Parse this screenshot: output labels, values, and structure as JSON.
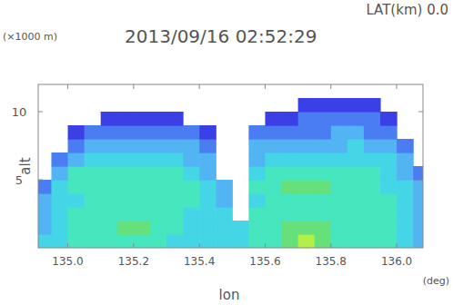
{
  "chart_data": {
    "type": "heatmap",
    "title": "2013/09/16 02:52:29",
    "subtitle": "LAT(km) 0.0",
    "x_label": "lon",
    "x_unit": "(deg)",
    "y_label": "alt",
    "y_unit": "(×1000 m)",
    "xlim": [
      134.91,
      136.08
    ],
    "ylim": [
      0,
      12
    ],
    "xticks": [
      {
        "value": 135,
        "label": "135.0"
      },
      {
        "value": 135.2,
        "label": "135.2"
      },
      {
        "value": 135.4,
        "label": "135.4"
      },
      {
        "value": 135.6,
        "label": "135.6"
      },
      {
        "value": 135.8,
        "label": "135.8"
      },
      {
        "value": 136,
        "label": "136.0"
      }
    ],
    "yticks": [
      5,
      10
    ],
    "x_edges": [
      134.9,
      134.95,
      135.0,
      135.05,
      135.1,
      135.15,
      135.2,
      135.25,
      135.3,
      135.35,
      135.4,
      135.45,
      135.5,
      135.55,
      135.6,
      135.65,
      135.7,
      135.75,
      135.8,
      135.85,
      135.9,
      135.95,
      136.0,
      136.05,
      136.1
    ],
    "y_edges": [
      0,
      1,
      2,
      3,
      4,
      5,
      6,
      7,
      8,
      9,
      10,
      11,
      12
    ],
    "z": [
      [
        20,
        15,
        15,
        15,
        10,
        null,
        null,
        null,
        null,
        null,
        null,
        null
      ],
      [
        20,
        20,
        20,
        20,
        20,
        15,
        10,
        null,
        null,
        null,
        null,
        null
      ],
      [
        25,
        25,
        25,
        20,
        25,
        25,
        15,
        10,
        5,
        null,
        null,
        null
      ],
      [
        25,
        25,
        25,
        25,
        25,
        25,
        20,
        15,
        10,
        null,
        null,
        null
      ],
      [
        25,
        25,
        25,
        25,
        25,
        25,
        20,
        15,
        10,
        5,
        null,
        null
      ],
      [
        25,
        30,
        25,
        25,
        25,
        25,
        20,
        15,
        10,
        5,
        null,
        null
      ],
      [
        25,
        30,
        25,
        25,
        25,
        25,
        20,
        15,
        10,
        5,
        null,
        null
      ],
      [
        25,
        25,
        25,
        25,
        25,
        25,
        20,
        15,
        10,
        5,
        null,
        null
      ],
      [
        20,
        25,
        25,
        25,
        25,
        25,
        20,
        15,
        10,
        5,
        null,
        null
      ],
      [
        20,
        20,
        20,
        25,
        25,
        20,
        15,
        15,
        10,
        null,
        null,
        null
      ],
      [
        20,
        20,
        20,
        20,
        20,
        15,
        15,
        10,
        5,
        null,
        null,
        null
      ],
      [
        20,
        20,
        20,
        15,
        15,
        null,
        null,
        null,
        null,
        null,
        null,
        null
      ],
      [
        20,
        20,
        null,
        null,
        null,
        null,
        null,
        null,
        null,
        null,
        null,
        null
      ],
      [
        25,
        25,
        25,
        20,
        25,
        20,
        15,
        15,
        10,
        null,
        null,
        null
      ],
      [
        25,
        25,
        25,
        25,
        25,
        25,
        20,
        15,
        10,
        5,
        null,
        null
      ],
      [
        30,
        30,
        25,
        25,
        30,
        25,
        20,
        15,
        10,
        5,
        null,
        null
      ],
      [
        35,
        30,
        25,
        25,
        30,
        25,
        20,
        15,
        10,
        10,
        5,
        null
      ],
      [
        30,
        30,
        25,
        25,
        30,
        25,
        20,
        15,
        10,
        10,
        5,
        null
      ],
      [
        25,
        25,
        25,
        25,
        25,
        25,
        20,
        15,
        15,
        10,
        5,
        null
      ],
      [
        25,
        25,
        25,
        25,
        25,
        25,
        20,
        20,
        15,
        10,
        5,
        null
      ],
      [
        25,
        25,
        25,
        25,
        25,
        25,
        20,
        15,
        10,
        10,
        5,
        null
      ],
      [
        25,
        25,
        25,
        25,
        20,
        20,
        20,
        15,
        10,
        5,
        null,
        null
      ],
      [
        20,
        20,
        20,
        20,
        20,
        15,
        15,
        10,
        null,
        null,
        null,
        null
      ],
      [
        15,
        15,
        15,
        15,
        15,
        10,
        null,
        null,
        null,
        null,
        null,
        null
      ]
    ],
    "zlevels": [
      5,
      10,
      15,
      20,
      25,
      30,
      35
    ],
    "colors": [
      "#3b3fe6",
      "#4a7cf2",
      "#52b4f2",
      "#44d6e6",
      "#46e6bf",
      "#66e07a",
      "#b2f046"
    ]
  }
}
